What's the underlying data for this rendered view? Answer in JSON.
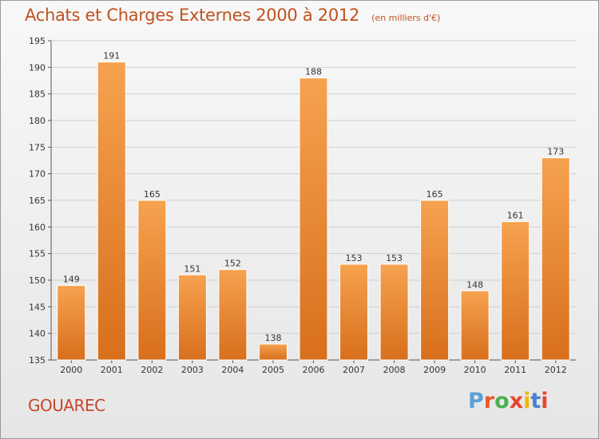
{
  "header": {
    "title": "Achats et Charges Externes 2000 à 2012",
    "subtitle": "(en milliers d'€)"
  },
  "footer": {
    "commune": "GOUAREC",
    "logo_text": "Proxiti"
  },
  "colors": {
    "title": "#c0521f",
    "commune": "#c8452b",
    "bar_light": "#f6a24f",
    "bar_dark": "#d86f1c",
    "logo_letters": [
      "#5aa0d8",
      "#e85a2b",
      "#4caf50",
      "#e8452b",
      "#f2b705",
      "#4a7fd0",
      "#e8452b"
    ]
  },
  "chart_data": {
    "type": "bar",
    "categories": [
      "2000",
      "2001",
      "2002",
      "2003",
      "2004",
      "2005",
      "2006",
      "2007",
      "2008",
      "2009",
      "2010",
      "2011",
      "2012"
    ],
    "values": [
      149,
      191,
      165,
      151,
      152,
      138,
      188,
      153,
      153,
      165,
      148,
      161,
      173
    ],
    "ylim": [
      135,
      195
    ],
    "yticks": [
      135,
      140,
      145,
      150,
      155,
      160,
      165,
      170,
      175,
      180,
      185,
      190,
      195
    ],
    "grid": true,
    "legend": "none"
  }
}
